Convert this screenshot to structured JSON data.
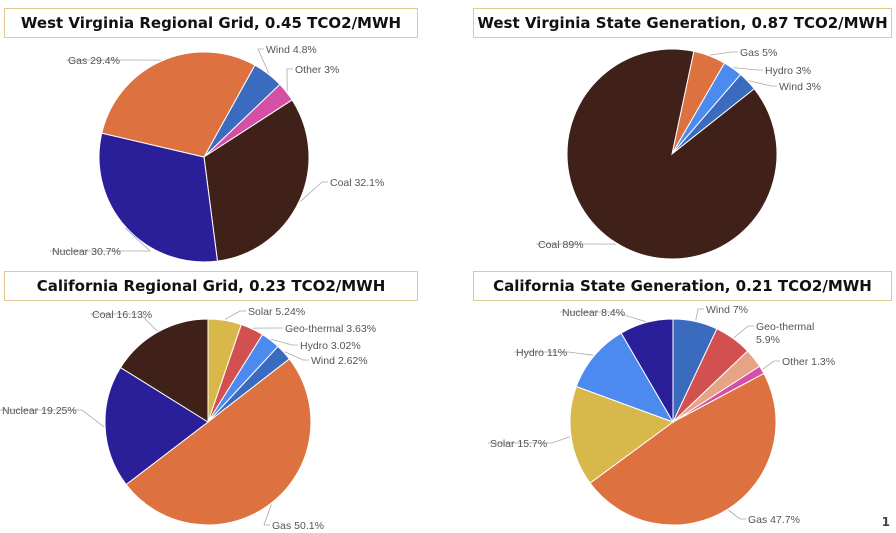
{
  "chart_data": [
    {
      "type": "pie",
      "title": "West Virginia Regional Grid, 0.45 TCO2/MWH",
      "slices": [
        {
          "name": "Wind",
          "value": 4.8,
          "label": "Wind 4.8%",
          "color": "#3a6bbf"
        },
        {
          "name": "Other",
          "value": 3,
          "label": "Other 3%",
          "color": "#d64fa6"
        },
        {
          "name": "Coal",
          "value": 32.1,
          "label": "Coal 32.1%",
          "color": "#3f2119"
        },
        {
          "name": "Nuclear",
          "value": 30.7,
          "label": "Nuclear 30.7%",
          "color": "#2b1f99"
        },
        {
          "name": "Gas",
          "value": 29.4,
          "label": "Gas 29.4%",
          "color": "#dd7240"
        }
      ]
    },
    {
      "type": "pie",
      "title": "West Virginia State Generation, 0.87 TCO2/MWH",
      "slices": [
        {
          "name": "Gas",
          "value": 5,
          "label": "Gas 5%",
          "color": "#dd7240"
        },
        {
          "name": "Hydro",
          "value": 3,
          "label": "Hydro 3%",
          "color": "#4c8af0"
        },
        {
          "name": "Wind",
          "value": 3,
          "label": "Wind 3%",
          "color": "#3a6bbf"
        },
        {
          "name": "Coal",
          "value": 89,
          "label": "Coal 89%",
          "color": "#3f2119"
        }
      ]
    },
    {
      "type": "pie",
      "title": "California Regional Grid, 0.23 TCO2/MWH",
      "slices": [
        {
          "name": "Solar",
          "value": 5.24,
          "label": "Solar 5.24%",
          "color": "#d8b84a"
        },
        {
          "name": "Geo-thermal",
          "value": 3.63,
          "label": "Geo-thermal 3.63%",
          "color": "#d35050"
        },
        {
          "name": "Hydro",
          "value": 3.02,
          "label": "Hydro 3.02%",
          "color": "#4c8af0"
        },
        {
          "name": "Wind",
          "value": 2.62,
          "label": "Wind 2.62%",
          "color": "#3a6bbf"
        },
        {
          "name": "Gas",
          "value": 50.1,
          "label": "Gas 50.1%",
          "color": "#dd7240"
        },
        {
          "name": "Nuclear",
          "value": 19.25,
          "label": "Nuclear 19.25%",
          "color": "#2b1f99"
        },
        {
          "name": "Coal",
          "value": 16.13,
          "label": "Coal 16.13%",
          "color": "#3f2119"
        }
      ]
    },
    {
      "type": "pie",
      "title": "California State Generation, 0.21 TCO2/MWH",
      "slices": [
        {
          "name": "Wind",
          "value": 7,
          "label": "Wind 7%",
          "color": "#3a6bbf"
        },
        {
          "name": "Geo-thermal",
          "value": 5.9,
          "label": [
            "Geo-thermal",
            "5.9%"
          ],
          "color": "#d35050"
        },
        {
          "name": "Other",
          "value": 3,
          "label": null,
          "color": "#e6a386"
        },
        {
          "name": "Other",
          "value": 1.3,
          "label": "Other 1.3%",
          "color": "#d64fa6"
        },
        {
          "name": "Gas",
          "value": 47.7,
          "label": "Gas 47.7%",
          "color": "#dd7240"
        },
        {
          "name": "Solar",
          "value": 15.7,
          "label": "Solar 15.7%",
          "color": "#d8b84a"
        },
        {
          "name": "Hydro",
          "value": 11,
          "label": "Hydro 11%",
          "color": "#4c8af0"
        },
        {
          "name": "Nuclear",
          "value": 8.4,
          "label": "Nuclear 8.4%",
          "color": "#2b1f99"
        }
      ]
    }
  ],
  "page_number": "1"
}
